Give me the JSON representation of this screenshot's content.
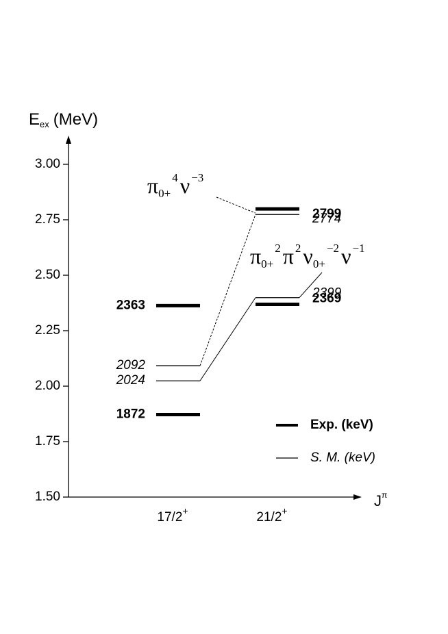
{
  "chart_data": {
    "type": "level-scheme",
    "y_label": {
      "main": "E",
      "sub": "ex",
      "unit": "(MeV)"
    },
    "x_label": {
      "main": "J",
      "sup": "π"
    },
    "ylim": [
      1.5,
      3.125
    ],
    "yticks": [
      {
        "value": 1.5,
        "label": "1.50"
      },
      {
        "value": 1.75,
        "label": "1.75"
      },
      {
        "value": 2.0,
        "label": "2.00"
      },
      {
        "value": 2.25,
        "label": "2.25"
      },
      {
        "value": 2.5,
        "label": "2.50"
      },
      {
        "value": 2.75,
        "label": "2.75"
      },
      {
        "value": 3.0,
        "label": "3.00"
      }
    ],
    "categories": [
      "17/2",
      "21/2"
    ],
    "category_sups": [
      "+",
      "+"
    ],
    "series": [
      {
        "name": "Exp. (keV)",
        "color": "#000000",
        "x": [
          "17/2",
          "17/2",
          "21/2",
          "21/2"
        ],
        "values": [
          1.872,
          2.363,
          2.369,
          2.799
        ],
        "value_labels": [
          "1872",
          "2363",
          "2369",
          "2799"
        ]
      },
      {
        "name": "S. M. (keV)",
        "color": "#000000",
        "x": [
          "17/2",
          "17/2",
          "21/2",
          "21/2"
        ],
        "values": [
          2.024,
          2.092,
          2.399,
          2.774
        ],
        "value_labels": [
          "2024",
          "2092",
          "2399",
          "2774"
        ]
      }
    ],
    "annotations": [
      {
        "parts": [
          {
            "text": "π",
            "sub": "0+",
            "sup": "4"
          },
          {
            "text": "ν",
            "sup": "−3"
          }
        ]
      },
      {
        "parts": [
          {
            "text": "π",
            "sub": "0+",
            "sup": "2"
          },
          {
            "text": "π",
            "sup": "2"
          },
          {
            "text": "ν",
            "sub": "0+",
            "sup": "−2"
          },
          {
            "text": "ν",
            "sup": "−1"
          }
        ]
      }
    ]
  }
}
